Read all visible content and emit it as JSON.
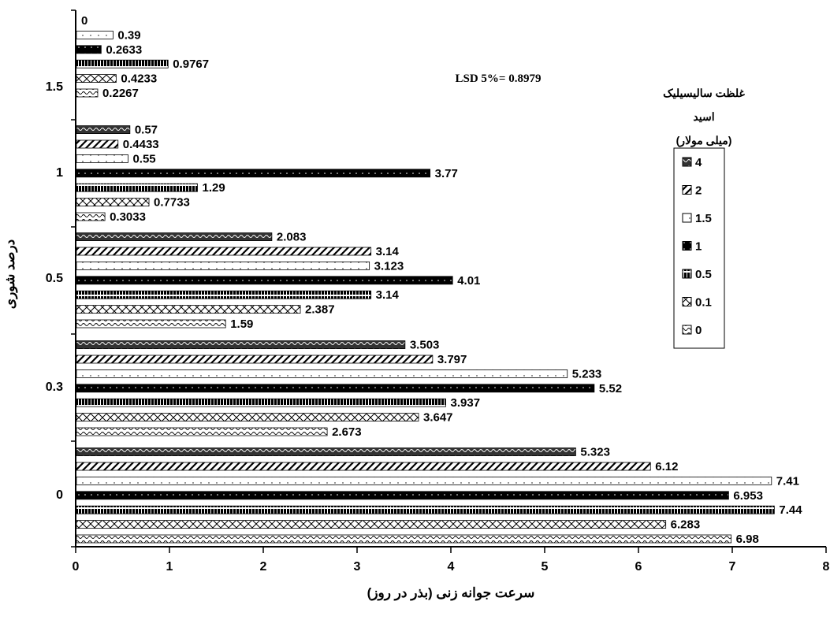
{
  "chart_data": {
    "type": "bar",
    "orientation": "horizontal",
    "title": "",
    "xlabel": "سرعت جوانه زنی (بذر در روز)",
    "ylabel": "درصد شوری",
    "xlim": [
      0,
      8
    ],
    "xticks": [
      "0",
      "1",
      "2",
      "3",
      "4",
      "5",
      "6",
      "7",
      "8"
    ],
    "categories": [
      "0",
      "0.3",
      "0.5",
      "1",
      "1.5"
    ],
    "legend_title": [
      "غلظت سالیسیلیک",
      "اسید",
      "(میلی مولار)"
    ],
    "legend_position": "right",
    "annotation": "LSD 5%= 0.8979",
    "series": [
      {
        "name": "0",
        "values": [
          6.98,
          2.673,
          1.59,
          0.3033,
          0.2267
        ],
        "labels": [
          "6.98",
          "2.673",
          "1.59",
          "0.3033",
          "0.2267"
        ]
      },
      {
        "name": "0.1",
        "values": [
          6.283,
          3.647,
          2.387,
          0.7733,
          0.4233
        ],
        "labels": [
          "6.283",
          "3.647",
          "2.387",
          "0.7733",
          "0.4233"
        ]
      },
      {
        "name": "0.5",
        "values": [
          7.44,
          3.937,
          3.14,
          1.29,
          0.9767
        ],
        "labels": [
          "7.44",
          "3.937",
          "3.14",
          "1.29",
          "0.9767"
        ]
      },
      {
        "name": "1",
        "values": [
          6.953,
          5.52,
          4.01,
          3.77,
          0.2633
        ],
        "labels": [
          "6.953",
          "5.52",
          "4.01",
          "3.77",
          "0.2633"
        ]
      },
      {
        "name": "1.5",
        "values": [
          7.41,
          5.233,
          3.123,
          0.55,
          0.39
        ],
        "labels": [
          "7.41",
          "5.233",
          "3.123",
          "0.55",
          "0.39"
        ]
      },
      {
        "name": "2",
        "values": [
          6.12,
          3.797,
          3.14,
          0.4433,
          0
        ],
        "labels": [
          "6.12",
          "3.797",
          "3.14",
          "0.4433",
          "0"
        ]
      },
      {
        "name": "4",
        "values": [
          5.323,
          3.503,
          2.083,
          0.57,
          null
        ],
        "labels": [
          "5.323",
          "3.503",
          "2.083",
          "0.57",
          ""
        ]
      }
    ],
    "grid": false
  }
}
